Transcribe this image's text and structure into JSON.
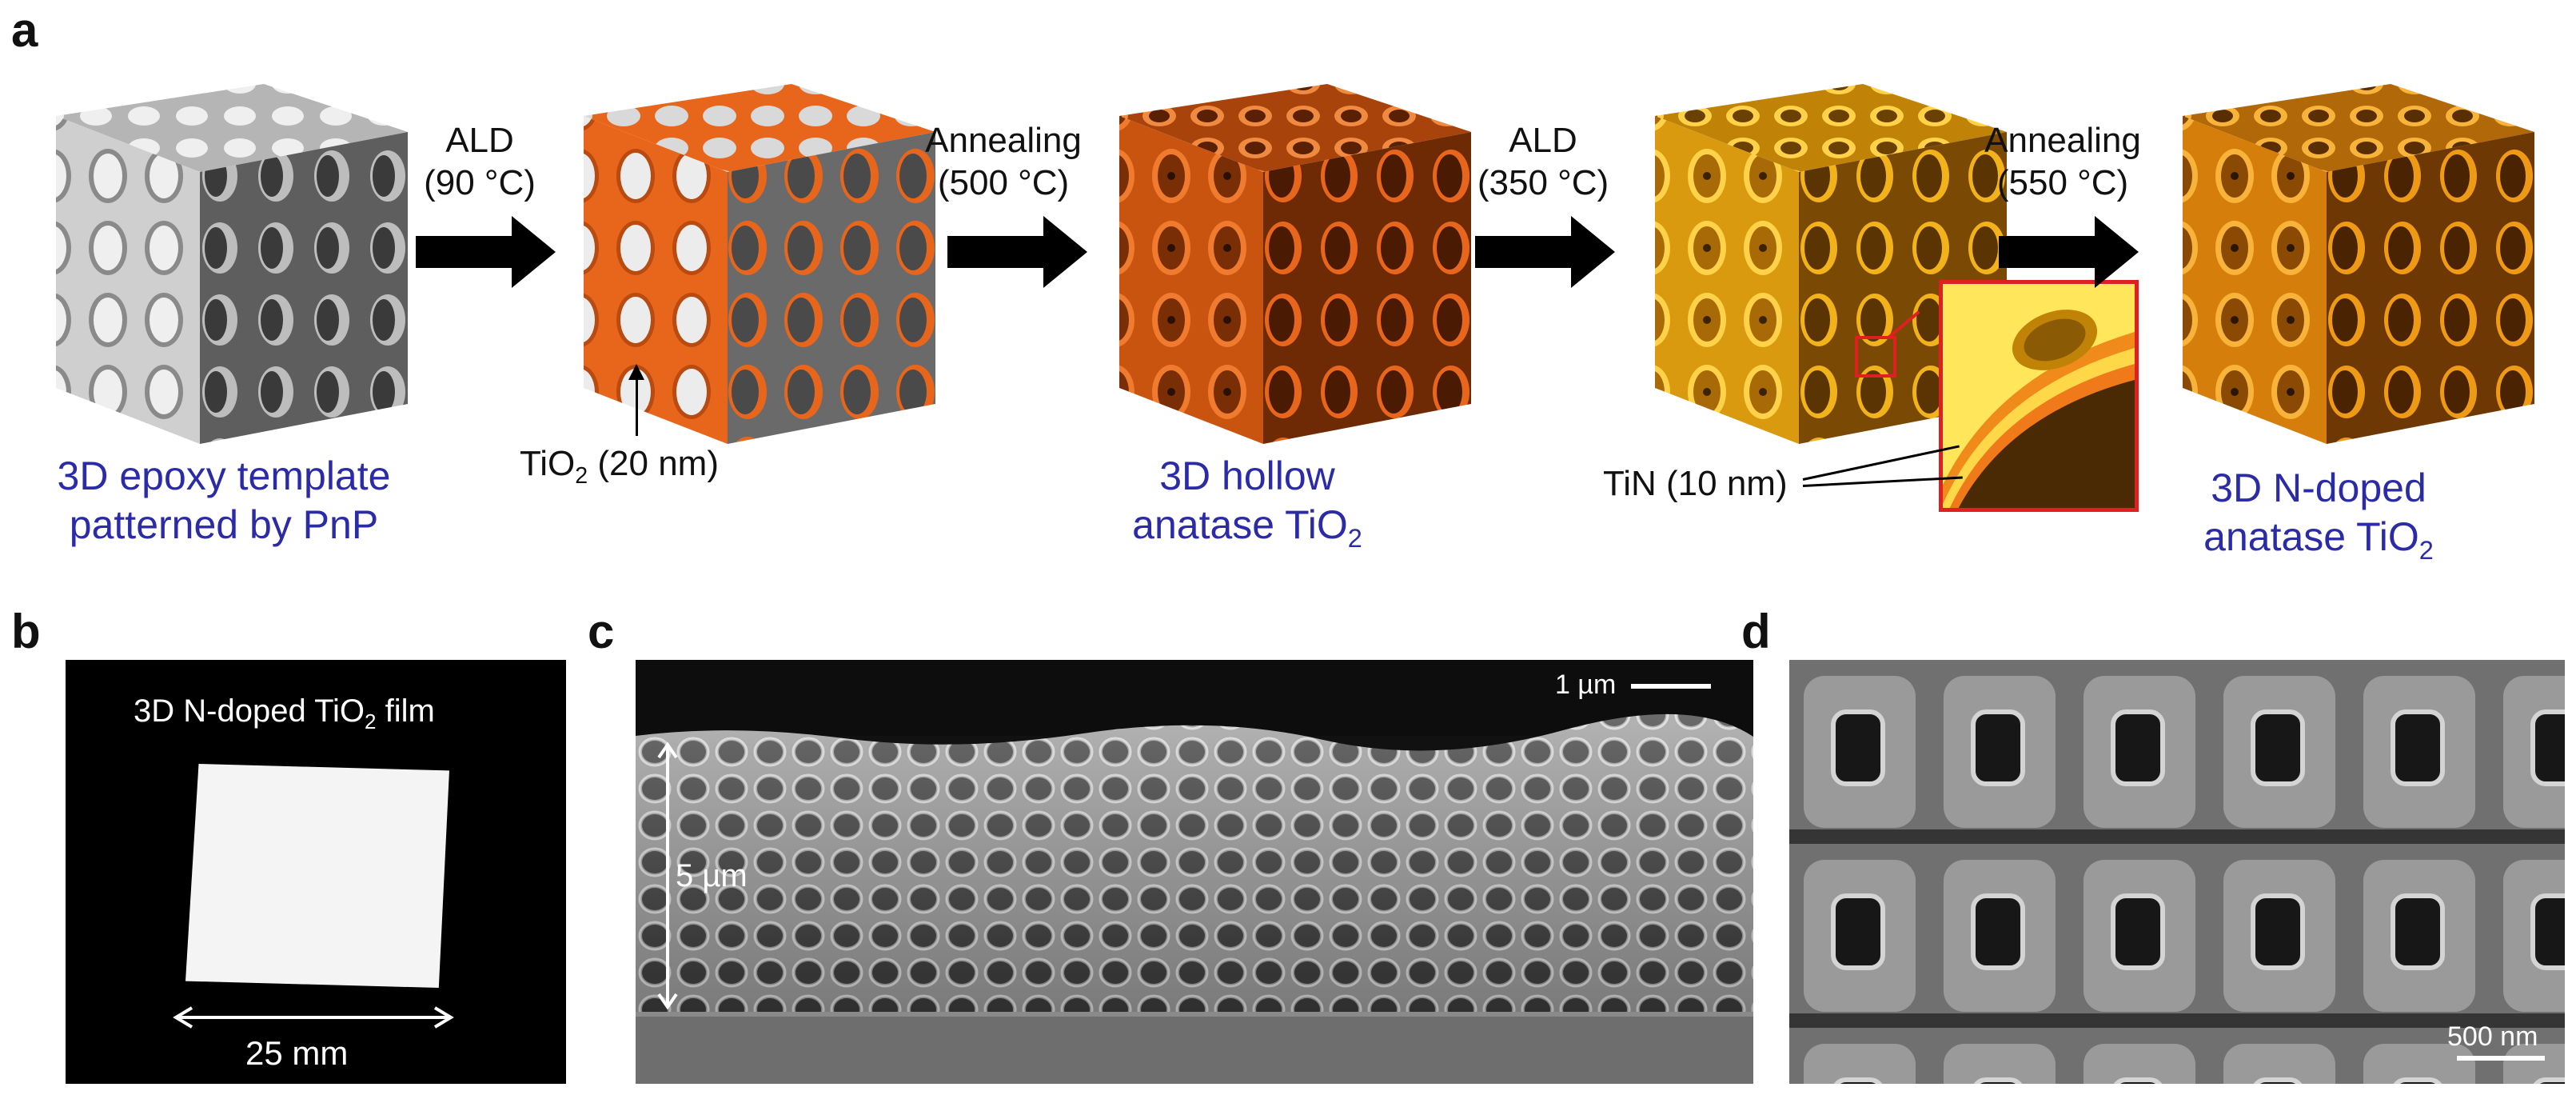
{
  "panels": {
    "a": {
      "letter": "a",
      "steps": [
        {
          "line1": "ALD",
          "line2": "(90 °C)"
        },
        {
          "line1": "Annealing",
          "line2": "(500 °C)"
        },
        {
          "line1": "ALD",
          "line2": "(350 °C)"
        },
        {
          "line1": "Annealing",
          "line2": "(550 °C)"
        }
      ],
      "captions": {
        "epoxy_line1": "3D epoxy template",
        "epoxy_line2": "patterned by PnP",
        "tio2_coat_main": "TiO",
        "tio2_coat_sub": "2",
        "tio2_coat_rest": " (20 nm)",
        "hollow_line1": "3D hollow",
        "hollow_line2_main": "anatase TiO",
        "hollow_line2_sub": "2",
        "tin_label": "TiN (10 nm)",
        "ndoped_line1": "3D N-doped",
        "ndoped_line2_main": "anatase TiO",
        "ndoped_line2_sub": "2"
      },
      "colors": {
        "epoxy": "#d6d6d6",
        "tio2": "#e8661c",
        "tin": "#f2b21a",
        "ndoped": "#ef9a14",
        "caption_blue": "#2b2ba8",
        "inset_border": "#e02020"
      }
    },
    "b": {
      "letter": "b",
      "title_main": "3D N-doped TiO",
      "title_sub": "2",
      "title_rest": " film",
      "scale": "25 mm"
    },
    "c": {
      "letter": "c",
      "scale": "1 µm",
      "thickness": "5 µm"
    },
    "d": {
      "letter": "d",
      "scale": "500 nm"
    }
  }
}
